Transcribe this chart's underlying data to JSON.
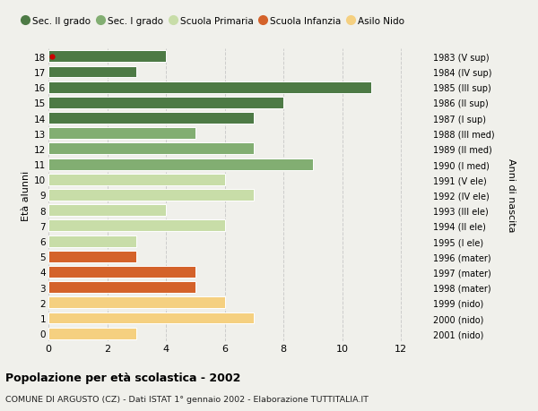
{
  "ages": [
    18,
    17,
    16,
    15,
    14,
    13,
    12,
    11,
    10,
    9,
    8,
    7,
    6,
    5,
    4,
    3,
    2,
    1,
    0
  ],
  "years": [
    "1983 (V sup)",
    "1984 (IV sup)",
    "1985 (III sup)",
    "1986 (II sup)",
    "1987 (I sup)",
    "1988 (III med)",
    "1989 (II med)",
    "1990 (I med)",
    "1991 (V ele)",
    "1992 (IV ele)",
    "1993 (III ele)",
    "1994 (II ele)",
    "1995 (I ele)",
    "1996 (mater)",
    "1997 (mater)",
    "1998 (mater)",
    "1999 (nido)",
    "2000 (nido)",
    "2001 (nido)"
  ],
  "values": [
    4,
    3,
    11,
    8,
    7,
    5,
    7,
    9,
    6,
    7,
    4,
    6,
    3,
    3,
    5,
    5,
    6,
    7,
    3
  ],
  "categories": [
    "Sec. II grado",
    "Sec. II grado",
    "Sec. II grado",
    "Sec. II grado",
    "Sec. II grado",
    "Sec. I grado",
    "Sec. I grado",
    "Sec. I grado",
    "Scuola Primaria",
    "Scuola Primaria",
    "Scuola Primaria",
    "Scuola Primaria",
    "Scuola Primaria",
    "Scuola Infanzia",
    "Scuola Infanzia",
    "Scuola Infanzia",
    "Asilo Nido",
    "Asilo Nido",
    "Asilo Nido"
  ],
  "colors": {
    "Sec. II grado": "#4d7a45",
    "Sec. I grado": "#82ae72",
    "Scuola Primaria": "#c8dda8",
    "Scuola Infanzia": "#d4622a",
    "Asilo Nido": "#f5d080"
  },
  "legend_order": [
    "Sec. II grado",
    "Sec. I grado",
    "Scuola Primaria",
    "Scuola Infanzia",
    "Asilo Nido"
  ],
  "title_bold": "Popolazione per età scolastica - 2002",
  "subtitle": "COMUNE DI ARGUSTO (CZ) - Dati ISTAT 1° gennaio 2002 - Elaborazione TUTTITALIA.IT",
  "ylabel": "Età alunni",
  "right_label": "Anni di nascita",
  "xlim": [
    0,
    13
  ],
  "xticks": [
    0,
    2,
    4,
    6,
    8,
    10,
    12
  ],
  "background_color": "#f0f0eb",
  "bar_edge_color": "white",
  "grid_color": "#cccccc",
  "age18_dot_color": "#cc0000"
}
